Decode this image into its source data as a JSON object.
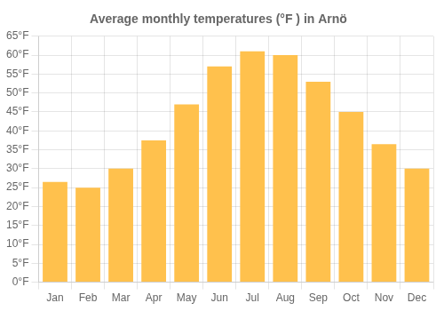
{
  "chart_data": {
    "type": "bar",
    "title": "Average monthly temperatures (°F ) in Arnö",
    "categories": [
      "Jan",
      "Feb",
      "Mar",
      "Apr",
      "May",
      "Jun",
      "Jul",
      "Aug",
      "Sep",
      "Oct",
      "Nov",
      "Dec"
    ],
    "values": [
      26.5,
      25.0,
      30.0,
      37.5,
      47.0,
      57.0,
      61.0,
      60.0,
      53.0,
      45.0,
      36.5,
      30.0
    ],
    "color": "#FFC14D",
    "ylim": [
      0,
      65
    ],
    "yticks": [
      {
        "value": 0,
        "label": "0°F"
      },
      {
        "value": 5,
        "label": "5°F"
      },
      {
        "value": 10,
        "label": "10°F"
      },
      {
        "value": 15,
        "label": "15°F"
      },
      {
        "value": 20,
        "label": "20°F"
      },
      {
        "value": 25,
        "label": "25°F"
      },
      {
        "value": 30,
        "label": "30°F"
      },
      {
        "value": 35,
        "label": "35°F"
      },
      {
        "value": 40,
        "label": "40°F"
      },
      {
        "value": 45,
        "label": "45°F"
      },
      {
        "value": 50,
        "label": "50°F"
      },
      {
        "value": 55,
        "label": "55°F"
      },
      {
        "value": 60,
        "label": "60°F"
      },
      {
        "value": 65,
        "label": "65°F"
      }
    ],
    "grid": true
  }
}
